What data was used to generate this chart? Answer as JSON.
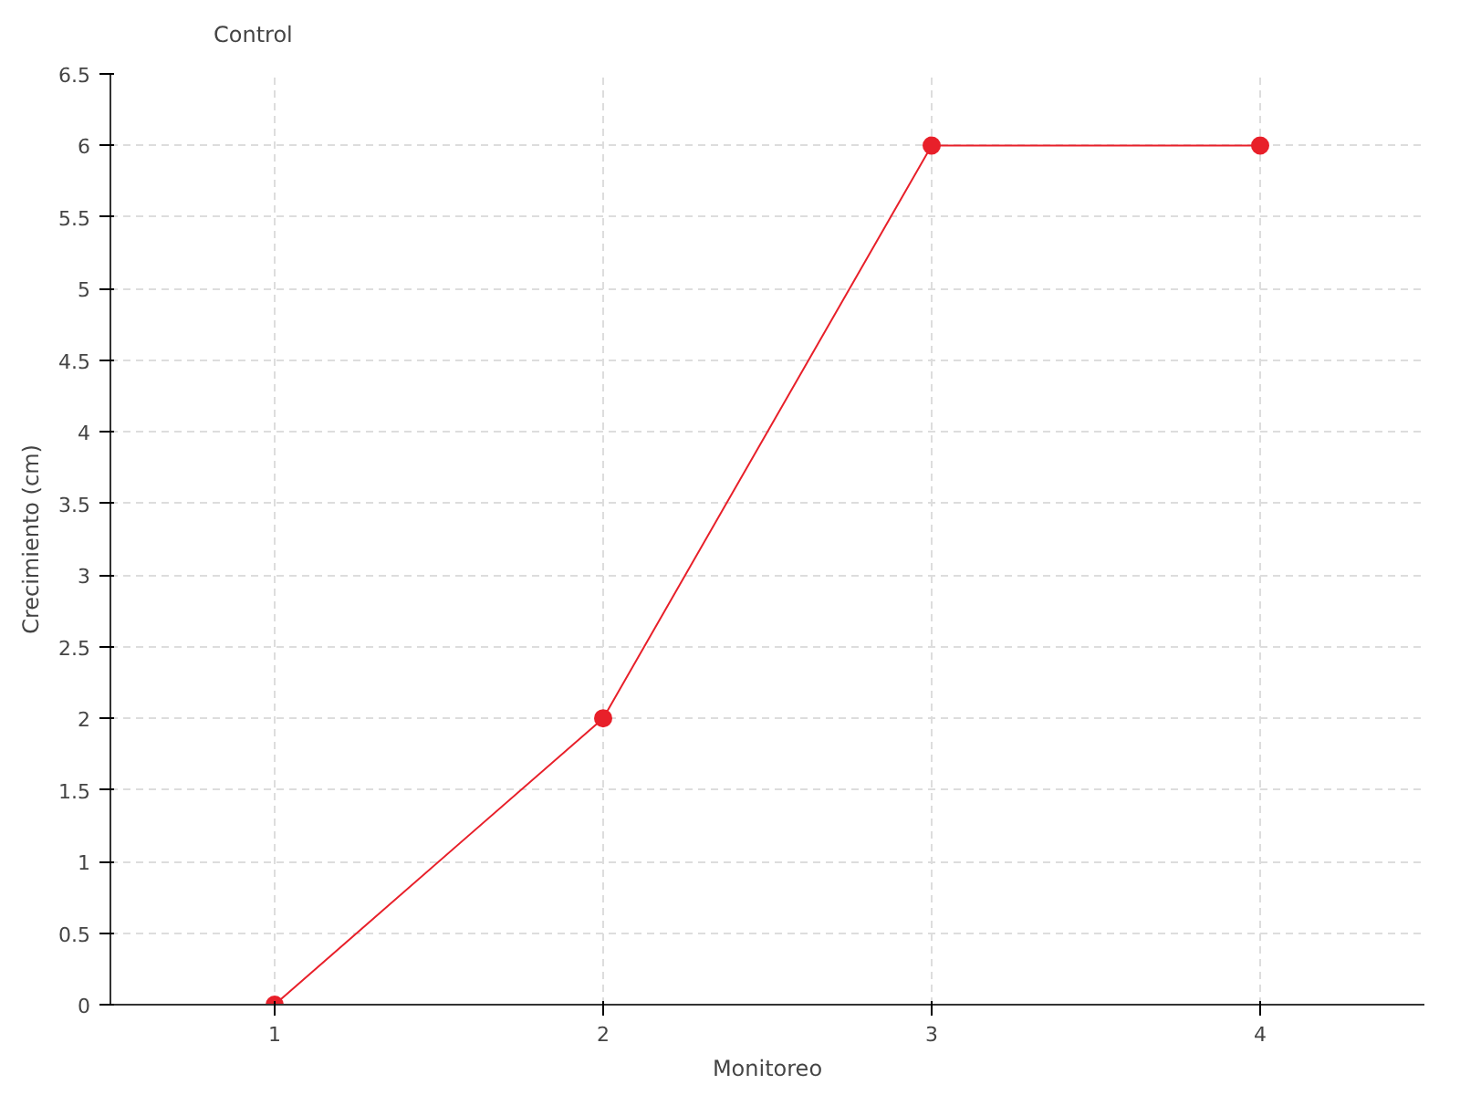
{
  "chart_data": {
    "type": "line",
    "xlabel": "Monitoreo",
    "ylabel": "Crecimiento (cm)",
    "categories": [
      "1",
      "2",
      "3",
      "4"
    ],
    "series": [
      {
        "name": "Control",
        "color": "#e8202a",
        "values": [
          0,
          2,
          6,
          6
        ]
      }
    ],
    "ylim": [
      0,
      6.5
    ],
    "yticks": [
      0,
      0.5,
      1,
      1.5,
      2,
      2.5,
      3,
      3.5,
      4,
      4.5,
      5,
      5.5,
      6,
      6.5
    ],
    "grid": true,
    "legend": "top left",
    "marker": "circle",
    "line_style": "solid"
  }
}
